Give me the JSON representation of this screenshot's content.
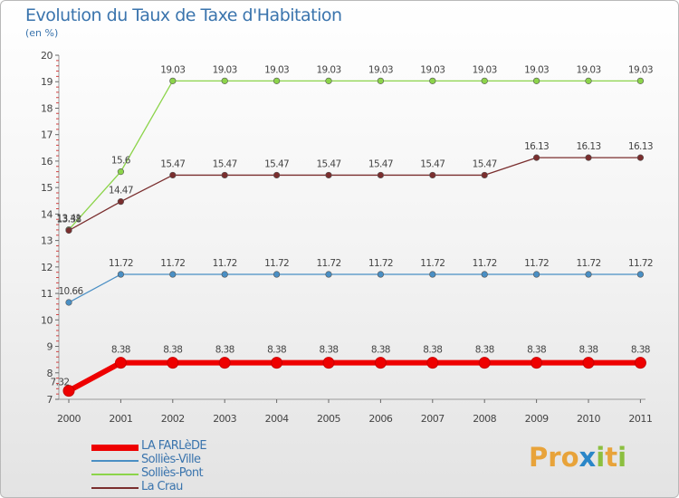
{
  "title": "Evolution du Taux de Taxe d'Habitation",
  "subtitle": "(en %)",
  "logo_text": "Proxiti",
  "chart_data": {
    "type": "line",
    "title": "Evolution du Taux de Taxe d'Habitation",
    "ylabel": "(en %)",
    "xlabel": "",
    "ylim": [
      7,
      20
    ],
    "yticks": [
      7,
      8,
      9,
      10,
      11,
      12,
      13,
      14,
      15,
      16,
      17,
      18,
      19,
      20
    ],
    "grid": false,
    "legend_position": "bottom-left",
    "categories": [
      "2000",
      "2001",
      "2002",
      "2003",
      "2004",
      "2005",
      "2006",
      "2007",
      "2008",
      "2009",
      "2010",
      "2011"
    ],
    "series": [
      {
        "name": "LA FARLèDE",
        "color": "#ee0000",
        "values": [
          7.32,
          8.38,
          8.38,
          8.38,
          8.38,
          8.38,
          8.38,
          8.38,
          8.38,
          8.38,
          8.38,
          8.38
        ],
        "labels": [
          "7.32",
          "8.38",
          "8.38",
          "8.38",
          "8.38",
          "8.38",
          "8.38",
          "8.38",
          "8.38",
          "8.38",
          "8.38",
          "8.38"
        ]
      },
      {
        "name": "Solliès-Ville",
        "color": "#4a8fc4",
        "values": [
          10.66,
          11.72,
          11.72,
          11.72,
          11.72,
          11.72,
          11.72,
          11.72,
          11.72,
          11.72,
          11.72,
          11.72
        ],
        "labels": [
          "10.66",
          "11.72",
          "11.72",
          "11.72",
          "11.72",
          "11.72",
          "11.72",
          "11.72",
          "11.72",
          "11.72",
          "11.72",
          "11.72"
        ]
      },
      {
        "name": "Solliès-Pont",
        "color": "#8cd44a",
        "values": [
          13.41,
          15.6,
          19.03,
          19.03,
          19.03,
          19.03,
          19.03,
          19.03,
          19.03,
          19.03,
          19.03,
          19.03
        ],
        "labels": [
          "13.41",
          "15.6",
          "19.03",
          "19.03",
          "19.03",
          "19.03",
          "19.03",
          "19.03",
          "19.03",
          "19.03",
          "19.03",
          "19.03"
        ]
      },
      {
        "name": "La Crau",
        "color": "#7a2e2e",
        "values": [
          13.38,
          14.47,
          15.47,
          15.47,
          15.47,
          15.47,
          15.47,
          15.47,
          15.47,
          16.13,
          16.13,
          16.13
        ],
        "labels": [
          "13.38",
          "14.47",
          "15.47",
          "15.47",
          "15.47",
          "15.47",
          "15.47",
          "15.47",
          "15.47",
          "16.13",
          "16.13",
          "16.13"
        ]
      }
    ]
  }
}
